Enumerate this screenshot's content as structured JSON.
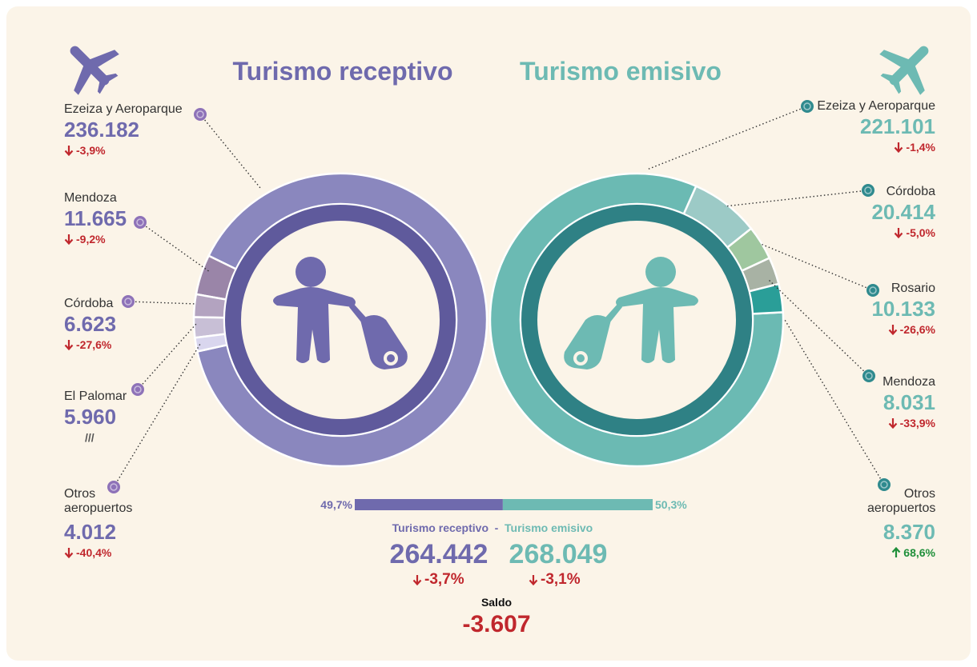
{
  "chart_data": [
    {
      "type": "pie",
      "title": "Turismo receptivo",
      "categories": [
        "Ezeiza y Aeroparque",
        "Mendoza",
        "Córdoba",
        "El Palomar",
        "Otros aeropuertos"
      ],
      "values": [
        236182,
        11665,
        6623,
        5960,
        4012
      ],
      "value_labels": [
        "236.182",
        "11.665",
        "6.623",
        "5.960",
        "4.012"
      ],
      "changes": [
        "-3,9%",
        "-9,2%",
        "-27,6%",
        "///",
        "-40,4%"
      ],
      "colors": [
        "#8a87be",
        "#9a85a8",
        "#b3a3c0",
        "#c8bfd6",
        "#d9d6ee"
      ]
    },
    {
      "type": "pie",
      "title": "Turismo emisivo",
      "categories": [
        "Ezeiza y Aeroparque",
        "Córdoba",
        "Rosario",
        "Mendoza",
        "Otros aeropuertos"
      ],
      "values": [
        221101,
        20414,
        10133,
        8031,
        8370
      ],
      "value_labels": [
        "221.101",
        "20.414",
        "10.133",
        "8.031",
        "8.370"
      ],
      "changes": [
        "-1,4%",
        "-5,0%",
        "-26,6%",
        "-33,9%",
        "68,6%"
      ],
      "colors": [
        "#6bbab3",
        "#9ccac6",
        "#9fc79f",
        "#a8b2a4",
        "#2a9e98"
      ]
    },
    {
      "type": "bar",
      "series": [
        {
          "name": "Turismo receptivo",
          "color": "#6f6aad",
          "values": [
            49.7
          ],
          "value_labels": [
            "49,7%"
          ]
        },
        {
          "name": "Turismo emisivo",
          "color": "#6dbab3",
          "values": [
            50.3
          ],
          "value_labels": [
            "50,3%"
          ]
        }
      ],
      "separator": "-"
    }
  ],
  "summary": {
    "receptivo_total": 264442,
    "receptivo_total_label": "264.442",
    "receptivo_change": "-3,7%",
    "emisivo_total": 268049,
    "emisivo_total_label": "268.049",
    "emisivo_change": "-3,1%",
    "saldo_label": "Saldo",
    "saldo": -3607,
    "saldo_value_label": "-3.607"
  }
}
